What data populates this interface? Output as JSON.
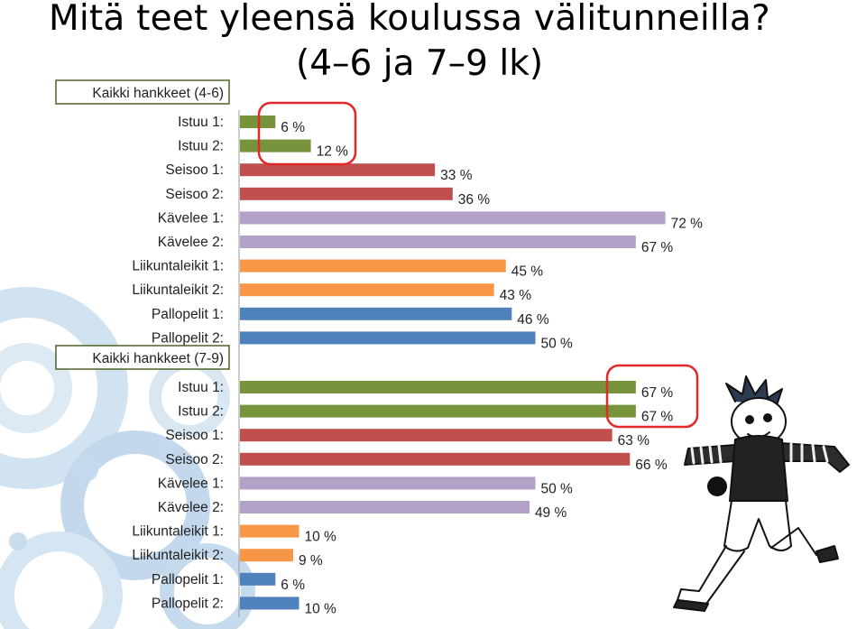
{
  "title_line1": "Mitä teet yleensä koulussa välitunneilla?",
  "title_line2": "(4–6 ja 7–9 lk)",
  "colors": {
    "istuu": "#77933c",
    "seisoo": "#c0504d",
    "kavelee": "#b3a2c7",
    "liikuntaleikit": "#f79646",
    "pallopelit": "#4f81bd",
    "highlight": "#e3282a",
    "group_box": "#4f6228"
  },
  "chart_data": {
    "type": "bar",
    "orientation": "horizontal",
    "xlim": [
      0,
      100
    ],
    "groups": [
      {
        "header": "Kaikki hankkeet (4-6)",
        "rows": [
          {
            "label": "Istuu 1:",
            "value": 6,
            "value_label": "6 %",
            "color_key": "istuu"
          },
          {
            "label": "Istuu 2:",
            "value": 12,
            "value_label": "12 %",
            "color_key": "istuu"
          },
          {
            "label": "Seisoo 1:",
            "value": 33,
            "value_label": "33 %",
            "color_key": "seisoo"
          },
          {
            "label": "Seisoo 2:",
            "value": 36,
            "value_label": "36 %",
            "color_key": "seisoo"
          },
          {
            "label": "Kävelee 1:",
            "value": 72,
            "value_label": "72 %",
            "color_key": "kavelee"
          },
          {
            "label": "Kävelee 2:",
            "value": 67,
            "value_label": "67 %",
            "color_key": "kavelee"
          },
          {
            "label": "Liikuntaleikit 1:",
            "value": 45,
            "value_label": "45 %",
            "color_key": "liikuntaleikit"
          },
          {
            "label": "Liikuntaleikit 2:",
            "value": 43,
            "value_label": "43 %",
            "color_key": "liikuntaleikit"
          },
          {
            "label": "Pallopelit 1:",
            "value": 46,
            "value_label": "46 %",
            "color_key": "pallopelit"
          },
          {
            "label": "Pallopelit 2:",
            "value": 50,
            "value_label": "50 %",
            "color_key": "pallopelit"
          }
        ]
      },
      {
        "header": "Kaikki hankkeet (7-9)",
        "rows": [
          {
            "label": "Istuu 1:",
            "value": 67,
            "value_label": "67 %",
            "color_key": "istuu"
          },
          {
            "label": "Istuu 2:",
            "value": 67,
            "value_label": "67 %",
            "color_key": "istuu"
          },
          {
            "label": "Seisoo 1:",
            "value": 63,
            "value_label": "63 %",
            "color_key": "seisoo"
          },
          {
            "label": "Seisoo 2:",
            "value": 66,
            "value_label": "66 %",
            "color_key": "seisoo"
          },
          {
            "label": "Kävelee 1:",
            "value": 50,
            "value_label": "50 %",
            "color_key": "kavelee"
          },
          {
            "label": "Kävelee 2:",
            "value": 49,
            "value_label": "49 %",
            "color_key": "kavelee"
          },
          {
            "label": "Liikuntaleikit 1:",
            "value": 10,
            "value_label": "10 %",
            "color_key": "liikuntaleikit"
          },
          {
            "label": "Liikuntaleikit 2:",
            "value": 9,
            "value_label": "9 %",
            "color_key": "liikuntaleikit"
          },
          {
            "label": "Pallopelit 1:",
            "value": 6,
            "value_label": "6 %",
            "color_key": "pallopelit"
          },
          {
            "label": "Pallopelit 2:",
            "value": 10,
            "value_label": "10 %",
            "color_key": "pallopelit"
          }
        ]
      }
    ],
    "highlighted_rows": [
      {
        "group": 0,
        "rows": [
          0,
          1
        ]
      },
      {
        "group": 1,
        "rows": [
          0,
          1
        ]
      }
    ]
  }
}
